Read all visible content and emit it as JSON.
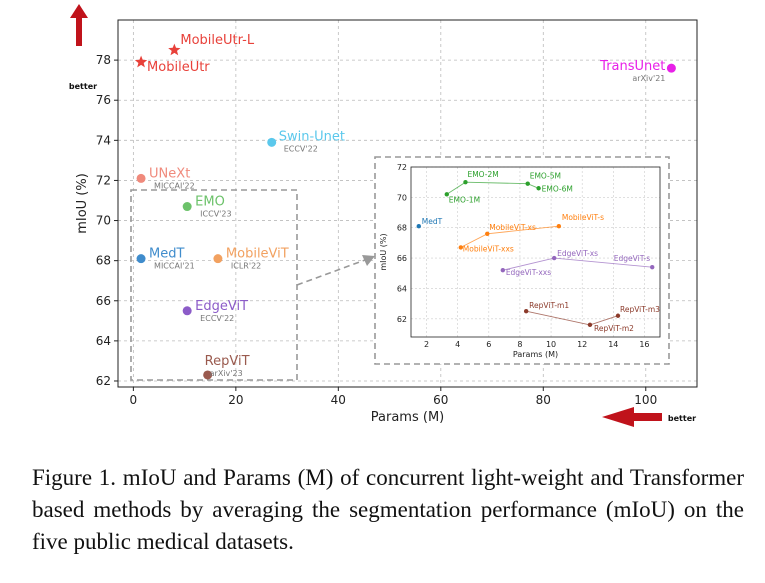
{
  "chart_data": [
    {
      "type": "scatter",
      "name": "main",
      "xlabel": "Params (M)",
      "ylabel": "mIoU (%)",
      "xlim": [
        -3,
        110
      ],
      "ylim": [
        61.7,
        80
      ],
      "xticks": [
        0,
        20,
        40,
        60,
        80,
        100
      ],
      "yticks": [
        62,
        64,
        66,
        68,
        70,
        72,
        74,
        76,
        78
      ],
      "grid": true,
      "better_y_label": "better",
      "better_x_label": "better",
      "points": [
        {
          "name": "MobileUtr-L",
          "x": 8,
          "y": 78.5,
          "marker": "star",
          "color": "#e8413a",
          "venue": ""
        },
        {
          "name": "MobileUtr",
          "x": 1.5,
          "y": 77.9,
          "marker": "star",
          "color": "#e8413a",
          "venue": ""
        },
        {
          "name": "TransUnet",
          "x": 105,
          "y": 77.6,
          "marker": "circle",
          "color": "#e820e8",
          "venue": "arXiv'21"
        },
        {
          "name": "Swin-Unet",
          "x": 27,
          "y": 73.9,
          "marker": "circle",
          "color": "#5bc8ec",
          "venue": "ECCV'22"
        },
        {
          "name": "UNeXt",
          "x": 1.5,
          "y": 72.1,
          "marker": "circle",
          "color": "#f08a7c",
          "venue": "MICCAI'22"
        },
        {
          "name": "EMO",
          "x": 10.5,
          "y": 70.7,
          "marker": "circle",
          "color": "#6cc26a",
          "venue": "ICCV'23"
        },
        {
          "name": "MedT",
          "x": 1.5,
          "y": 68.1,
          "marker": "circle",
          "color": "#3f8ccc",
          "venue": "MICCAI'21"
        },
        {
          "name": "MobileViT",
          "x": 16.5,
          "y": 68.1,
          "marker": "circle",
          "color": "#f2a160",
          "venue": "ICLR'22"
        },
        {
          "name": "EdgeViT",
          "x": 10.5,
          "y": 65.5,
          "marker": "circle",
          "color": "#8c5cc8",
          "venue": "ECCV'22"
        },
        {
          "name": "RepViT",
          "x": 14.5,
          "y": 62.3,
          "marker": "circle",
          "color": "#9a5a4e",
          "venue": "arXiv'23"
        }
      ]
    },
    {
      "type": "line",
      "name": "inset",
      "xlabel": "Params (M)",
      "ylabel": "mIoU (%)",
      "xlim": [
        1,
        17
      ],
      "ylim": [
        60.8,
        72
      ],
      "xticks": [
        2,
        4,
        6,
        8,
        10,
        12,
        14,
        16
      ],
      "yticks": [
        62,
        64,
        66,
        68,
        70,
        72
      ],
      "grid": true,
      "series": [
        {
          "name": "EMO",
          "color": "#2ca02c",
          "points": [
            {
              "label": "EMO-1M",
              "x": 3.3,
              "y": 70.2
            },
            {
              "label": "EMO-2M",
              "x": 4.5,
              "y": 71.0
            },
            {
              "label": "EMO-5M",
              "x": 8.5,
              "y": 70.9
            },
            {
              "label": "EMO-6M",
              "x": 9.2,
              "y": 70.6
            }
          ]
        },
        {
          "name": "MedT",
          "color": "#1f77b4",
          "points": [
            {
              "label": "MedT",
              "x": 1.5,
              "y": 68.1
            }
          ]
        },
        {
          "name": "MobileViT",
          "color": "#ff7f0e",
          "points": [
            {
              "label": "MobileViT-xxs",
              "x": 4.2,
              "y": 66.7
            },
            {
              "label": "MobileViT-xs",
              "x": 5.9,
              "y": 67.6
            },
            {
              "label": "MobileViT-s",
              "x": 10.5,
              "y": 68.1
            }
          ]
        },
        {
          "name": "EdgeViT",
          "color": "#9467bd",
          "points": [
            {
              "label": "EdgeViT-xxs",
              "x": 6.9,
              "y": 65.2
            },
            {
              "label": "EdgeViT-xs",
              "x": 10.2,
              "y": 66.0
            },
            {
              "label": "EdgeViT-s",
              "x": 16.5,
              "y": 65.4
            }
          ]
        },
        {
          "name": "RepViT",
          "color": "#8c3b2b",
          "points": [
            {
              "label": "RepViT-m1",
              "x": 8.4,
              "y": 62.5
            },
            {
              "label": "RepViT-m2",
              "x": 12.5,
              "y": 61.6
            },
            {
              "label": "RepViT-m3",
              "x": 14.3,
              "y": 62.2
            }
          ]
        }
      ]
    }
  ],
  "caption": {
    "text": "Figure 1.  mIoU and Params (M) of concurrent light-weight and Transformer based methods by averaging the segmentation performance (mIoU) on the five public medical datasets."
  },
  "colors": {
    "axis": "#222222",
    "grid": "#bbbbbb",
    "dashed_box": "#999999",
    "arrow": "#c0131b"
  }
}
